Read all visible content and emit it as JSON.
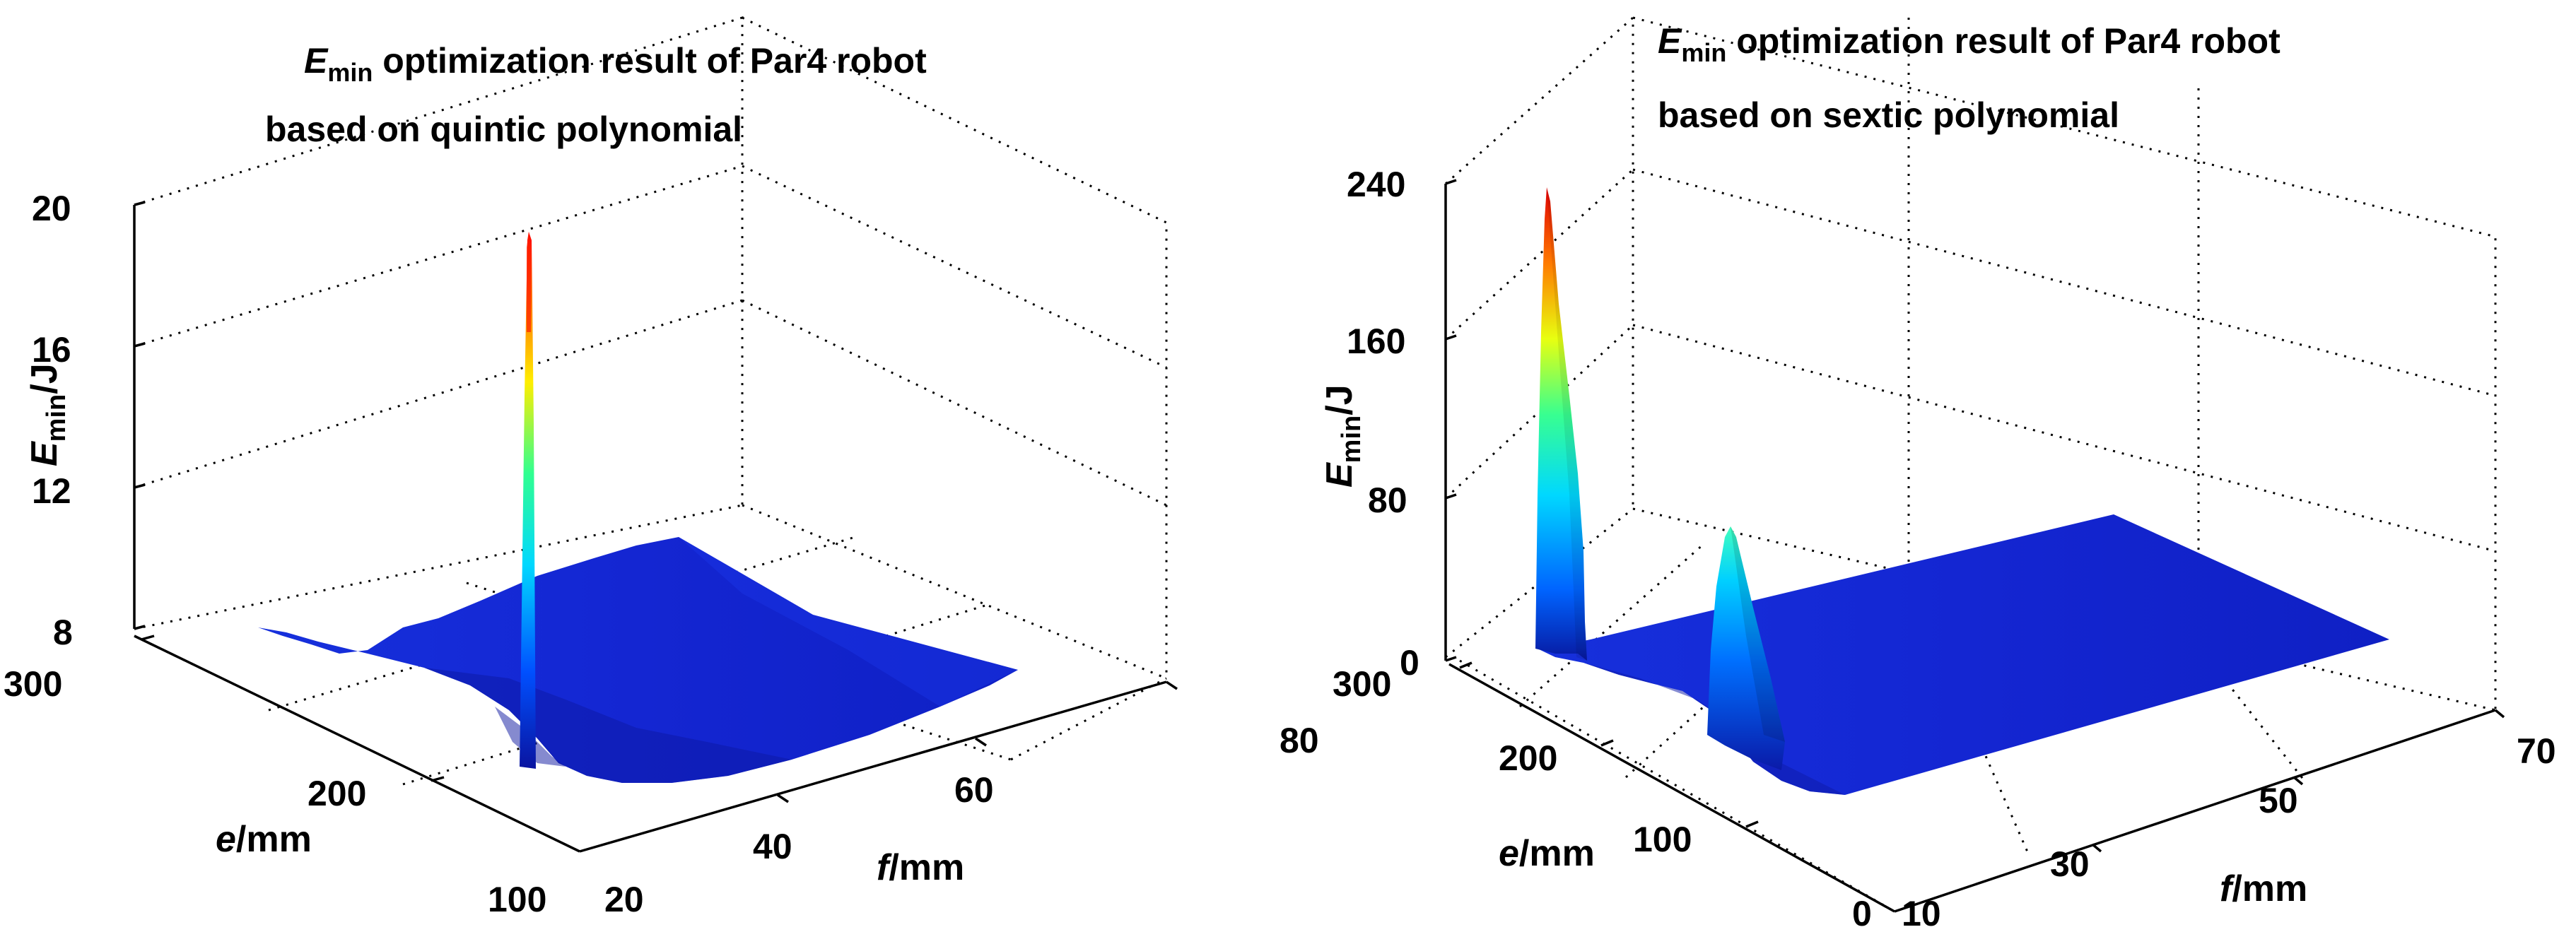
{
  "colors": {
    "surface_base": "#1426d2",
    "surface_dark": "#0d1aa8",
    "jet_high": "#ff0000"
  },
  "chart_data": [
    {
      "type": "surface",
      "title_var": "E",
      "title_sub": "min",
      "title_rest": " optimization result of Par4 robot",
      "subtitle": "based on quintic polynomial",
      "zlabel_var": "E",
      "zlabel_sub": "min",
      "zlabel_unit": "/J",
      "xlabel_var": "f",
      "xlabel_unit": "/mm",
      "ylabel_var": "e",
      "ylabel_unit": "/mm",
      "z_ticks": [
        "8",
        "12",
        "16",
        "20"
      ],
      "x_ticks": [
        "20",
        "40",
        "60",
        "80"
      ],
      "y_ticks": [
        "100",
        "200",
        "300"
      ],
      "zlim": [
        8,
        20
      ],
      "xlim": [
        20,
        80
      ],
      "ylim": [
        100,
        300
      ],
      "colormap": "jet",
      "grid": true,
      "features": [
        {
          "kind": "spike",
          "f": 30,
          "e": 160,
          "z_peak": 19.3
        }
      ],
      "baseline_z": 8.6
    },
    {
      "type": "surface",
      "title_var": "E",
      "title_sub": "min",
      "title_rest": " optimization result of Par4 robot",
      "subtitle": "based on  sextic polynomial",
      "zlabel_var": "E",
      "zlabel_sub": "min",
      "zlabel_unit": "/J",
      "xlabel_var": "f",
      "xlabel_unit": "/mm",
      "ylabel_var": "e",
      "ylabel_unit": "/mm",
      "z_ticks": [
        "0",
        "80",
        "160",
        "240"
      ],
      "x_ticks": [
        "10",
        "30",
        "50",
        "70"
      ],
      "y_ticks": [
        "0",
        "100",
        "200",
        "300"
      ],
      "zlim": [
        0,
        240
      ],
      "xlim": [
        10,
        70
      ],
      "ylim": [
        0,
        300
      ],
      "colormap": "jet",
      "grid": true,
      "features": [
        {
          "kind": "peak",
          "f": 10,
          "e": 280,
          "z_peak": 235
        },
        {
          "kind": "peak",
          "f": 20,
          "e": 140,
          "z_peak": 65
        }
      ],
      "baseline_z": 2
    }
  ]
}
